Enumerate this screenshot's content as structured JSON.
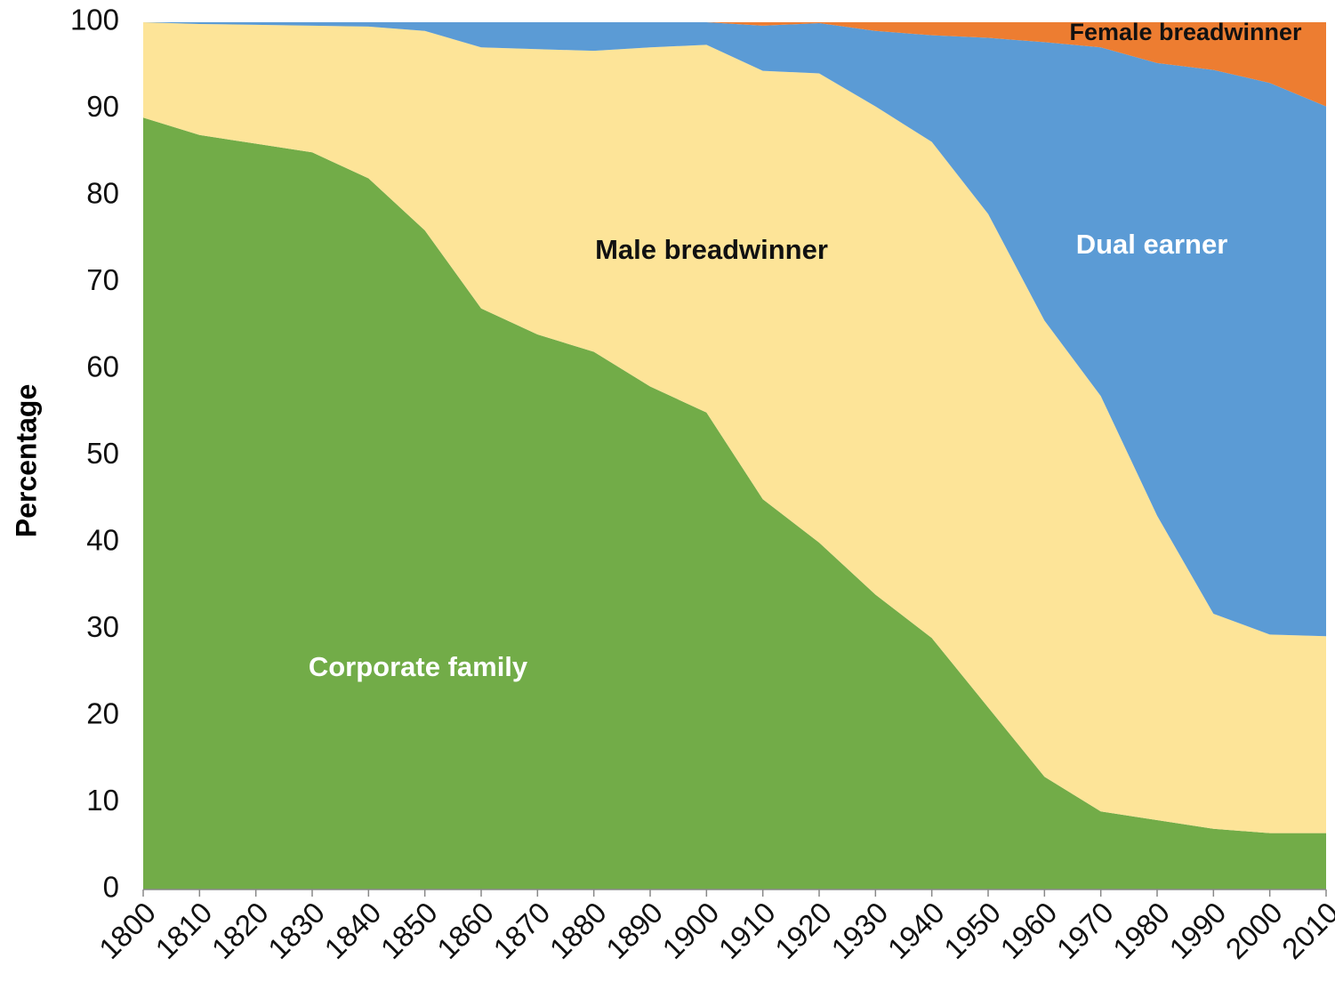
{
  "chart_data": {
    "type": "stacked_area",
    "y_label": "Percentage",
    "x": [
      1800,
      1810,
      1820,
      1830,
      1840,
      1850,
      1860,
      1870,
      1880,
      1890,
      1900,
      1910,
      1920,
      1930,
      1940,
      1950,
      1960,
      1970,
      1980,
      1990,
      2000,
      2010
    ],
    "series": [
      {
        "name": "Corporate family",
        "color": "#72ac48",
        "values": [
          89,
          87,
          86,
          85,
          82,
          76,
          67,
          64,
          62,
          58,
          55,
          45,
          40,
          34,
          29,
          21,
          13,
          9,
          8,
          7,
          6.5,
          6.5
        ]
      },
      {
        "name": "Male breadwinner",
        "color": "#fde498",
        "values": [
          11,
          12.8,
          13.7,
          14.6,
          17.5,
          23,
          30.1,
          32.9,
          34.7,
          39.1,
          42.4,
          49.4,
          54.1,
          56.3,
          57.2,
          56.9,
          52.6,
          47.9,
          35.1,
          24.8,
          22.9,
          22.7
        ]
      },
      {
        "name": "Dual earner",
        "color": "#5b9bd5",
        "values": [
          0,
          0.2,
          0.3,
          0.4,
          0.5,
          1,
          2.9,
          3.1,
          3.3,
          2.9,
          2.6,
          5.2,
          5.8,
          8.7,
          12.3,
          20.3,
          32.1,
          40.2,
          52.2,
          62.7,
          63.6,
          61.1
        ]
      },
      {
        "name": "Female breadwinner",
        "color": "#ed7d31",
        "values": [
          0,
          0,
          0,
          0,
          0,
          0,
          0,
          0,
          0,
          0,
          0,
          0.4,
          0.1,
          1,
          1.5,
          1.8,
          2.3,
          2.9,
          4.7,
          5.5,
          7,
          9.7
        ]
      }
    ],
    "xlim": [
      1800,
      2010
    ],
    "xticks": [
      1800,
      1810,
      1820,
      1830,
      1840,
      1850,
      1860,
      1870,
      1880,
      1890,
      1900,
      1910,
      1920,
      1930,
      1940,
      1950,
      1960,
      1970,
      1980,
      1990,
      2000,
      2010
    ],
    "ylim": [
      0,
      100
    ],
    "yticks": [
      0,
      10,
      20,
      30,
      40,
      50,
      60,
      70,
      80,
      90,
      100
    ],
    "grid": false
  }
}
